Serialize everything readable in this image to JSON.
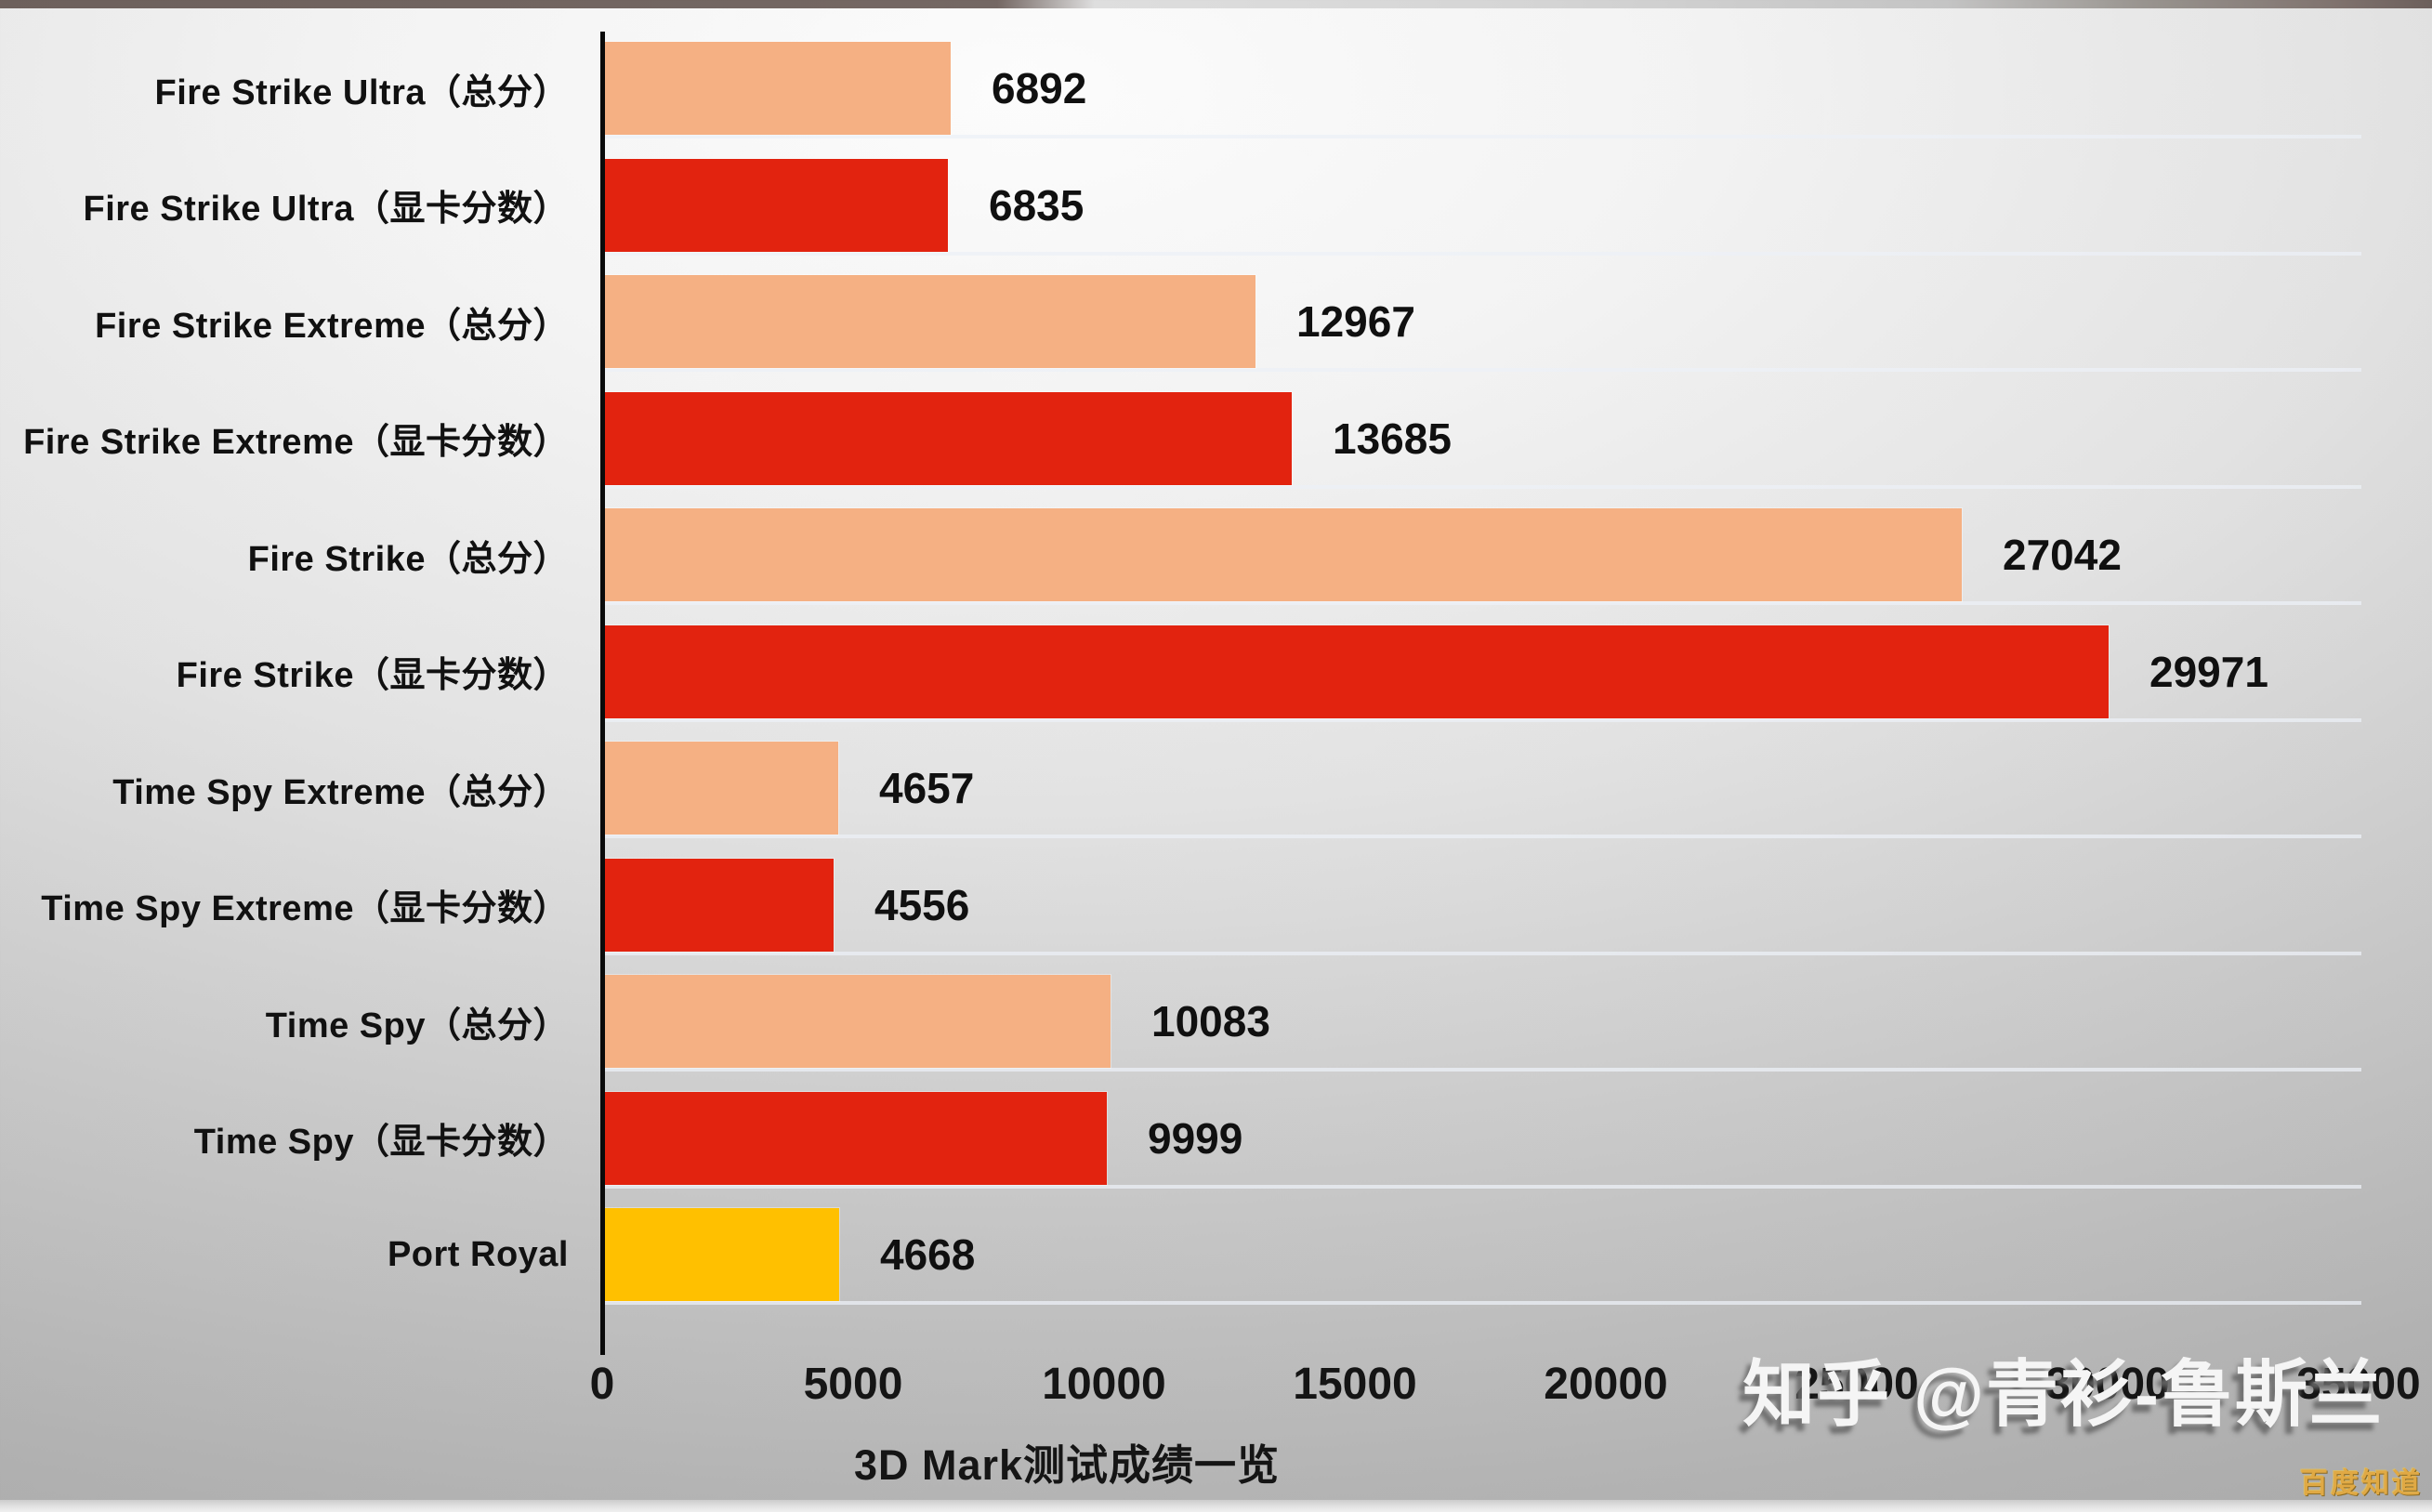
{
  "chart_data": {
    "type": "bar",
    "orientation": "horizontal",
    "title": "3D Mark测试成绩一览",
    "categories": [
      "Fire Strike Ultra（总分）",
      "Fire Strike Ultra（显卡分数）",
      "Fire Strike Extreme（总分）",
      "Fire Strike Extreme（显卡分数）",
      "Fire Strike（总分）",
      "Fire Strike（显卡分数）",
      "Time Spy Extreme（总分）",
      "Time Spy Extreme（显卡分数）",
      "Time Spy（总分）",
      "Time Spy（显卡分数）",
      "Port Royal"
    ],
    "values": [
      6892,
      6835,
      12967,
      13685,
      27042,
      29971,
      4657,
      4556,
      10083,
      9999,
      4668
    ],
    "bar_colors": [
      "#F5B083",
      "#E2230F",
      "#F5B083",
      "#E2230F",
      "#F5B083",
      "#E2230F",
      "#F5B083",
      "#E2230F",
      "#F5B083",
      "#E2230F",
      "#FFC000"
    ],
    "xlim": [
      0,
      35000
    ],
    "x_ticks": [
      "0",
      "5000",
      "10000",
      "15000",
      "20000",
      "25000",
      "30000",
      "35000"
    ],
    "grid": false,
    "legend": "none",
    "value_labels_shown": true
  },
  "colors": {
    "bar_total_score": "#F5B083",
    "bar_gpu_score": "#E2230F",
    "bar_port_royal": "#FFC000",
    "axis_line": "#0A0A0A",
    "text": "#111111"
  },
  "watermarks": {
    "zhihu": "知乎 @青衫-鲁斯兰",
    "baidu": "百度知道"
  }
}
